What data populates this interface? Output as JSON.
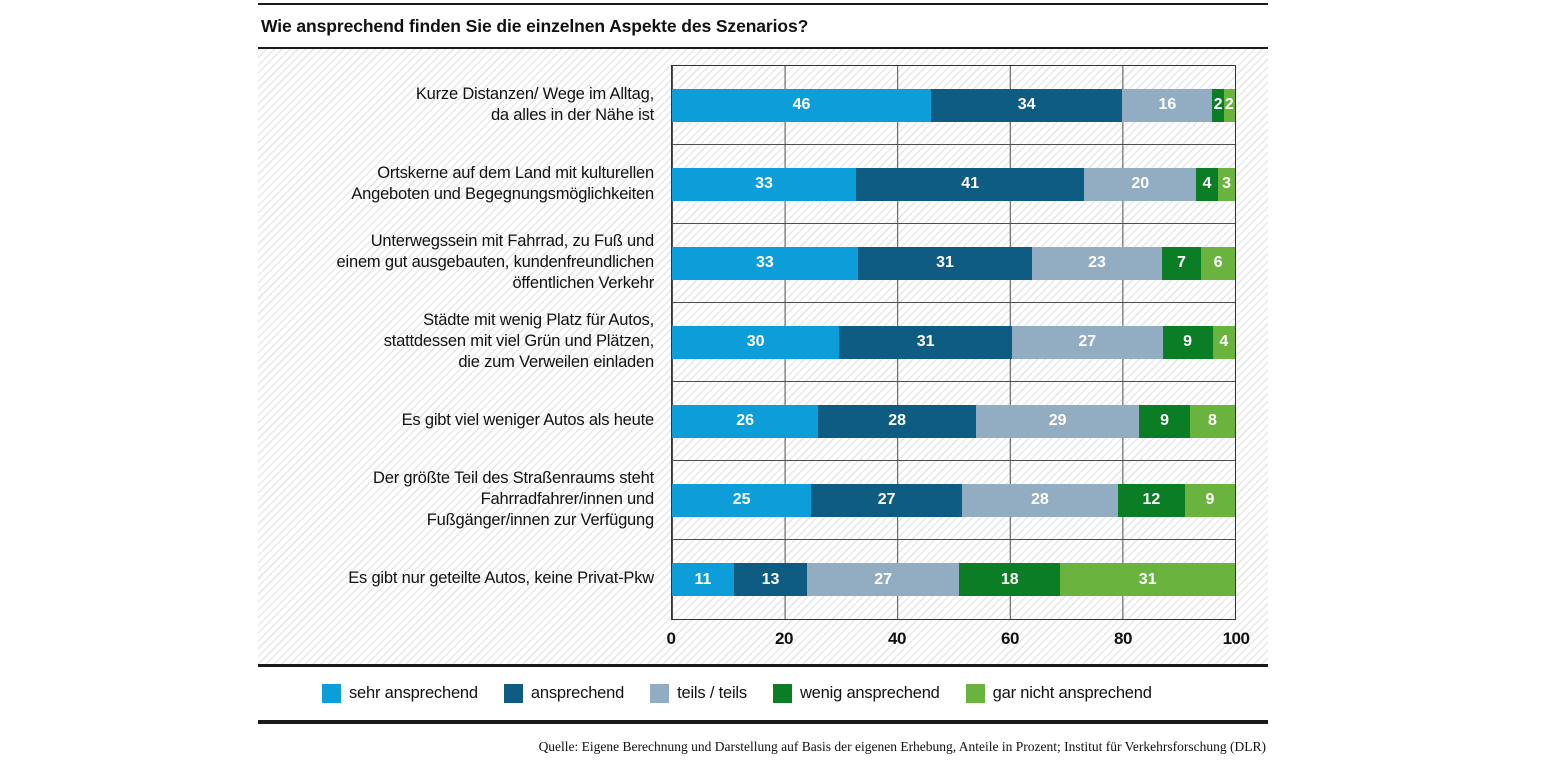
{
  "title": "Wie ansprechend finden Sie die einzelnen Aspekte des Szenarios?",
  "source": "Quelle: Eigene Berechnung und Darstellung auf Basis der eigenen Erhebung, Anteile in Prozent; Institut für Verkehrsforschung (DLR)",
  "chart_data": {
    "type": "bar",
    "orientation": "horizontal",
    "stacked": true,
    "title": "Wie ansprechend finden Sie die einzelnen Aspekte des Szenarios?",
    "xlabel": "",
    "ylabel": "",
    "xlim": [
      0,
      100
    ],
    "x_ticks": [
      "0",
      "20",
      "40",
      "60",
      "80",
      "100"
    ],
    "grid": true,
    "value_labels": true,
    "legend_position": "bottom",
    "units": "Prozent",
    "categories": [
      [
        "Kurze Distanzen/ Wege im Alltag,",
        "da alles in der Nähe ist"
      ],
      [
        "Ortskerne auf dem Land mit kulturellen",
        "Angeboten und Begegnungsmöglichkeiten"
      ],
      [
        "Unterwegssein mit Fahrrad, zu Fuß und",
        "einem gut ausgebauten, kundenfreundlichen",
        "öffentlichen Verkehr"
      ],
      [
        "Städte mit wenig Platz für Autos,",
        "stattdessen mit viel Grün und Plätzen,",
        "die zum Verweilen einladen"
      ],
      [
        "Es gibt viel weniger Autos als heute"
      ],
      [
        "Der größte Teil des Straßenraums steht",
        "Fahrradfahrer/innen und",
        "Fußgänger/innen zur Verfügung"
      ],
      [
        "Es gibt nur geteilte Autos, keine Privat-Pkw"
      ]
    ],
    "series": [
      {
        "name": "sehr ansprechend",
        "color": "#0d9dd9",
        "values": [
          46,
          33,
          33,
          30,
          26,
          25,
          11
        ]
      },
      {
        "name": "ansprechend",
        "color": "#0f5c82",
        "values": [
          34,
          41,
          31,
          31,
          28,
          27,
          13
        ]
      },
      {
        "name": "teils / teils",
        "color": "#92acc1",
        "values": [
          16,
          20,
          23,
          27,
          29,
          28,
          27
        ]
      },
      {
        "name": "wenig ansprechend",
        "color": "#0b7d25",
        "values": [
          2,
          4,
          7,
          9,
          9,
          12,
          18
        ]
      },
      {
        "name": "gar nicht ansprechend",
        "color": "#69b33e",
        "values": [
          2,
          3,
          6,
          4,
          8,
          9,
          31
        ]
      }
    ]
  }
}
